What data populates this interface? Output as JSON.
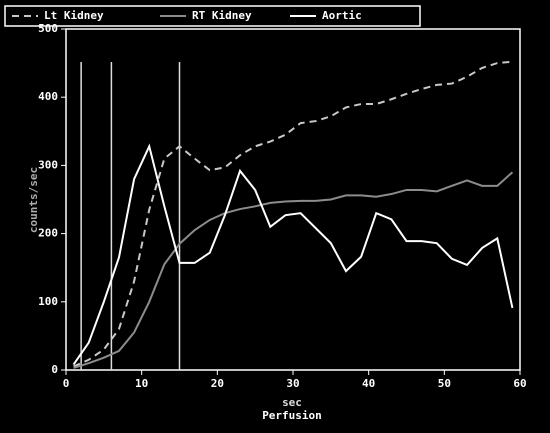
{
  "chart_data": {
    "type": "line",
    "xlabel": "sec",
    "subtitle": "Perfusion",
    "ylabel": "counts/sec",
    "x": [
      1,
      3,
      5,
      7,
      9,
      11,
      13,
      15,
      17,
      19,
      21,
      23,
      25,
      27,
      29,
      31,
      33,
      35,
      37,
      39,
      41,
      43,
      45,
      47,
      49,
      51,
      53,
      55,
      57,
      59
    ],
    "series": [
      {
        "name": "Lt Kidney",
        "color": "#c8c8c8",
        "dash": "7,5",
        "values": [
          5,
          15,
          30,
          60,
          130,
          235,
          310,
          328,
          310,
          293,
          297,
          315,
          328,
          335,
          345,
          362,
          365,
          372,
          385,
          390,
          390,
          397,
          405,
          412,
          418,
          420,
          430,
          443,
          450,
          452
        ]
      },
      {
        "name": "RT Kidney",
        "color": "#8c8c8c",
        "dash": "none",
        "values": [
          3,
          10,
          18,
          28,
          55,
          100,
          155,
          185,
          205,
          220,
          230,
          236,
          240,
          245,
          247,
          248,
          248,
          250,
          256,
          256,
          254,
          258,
          264,
          264,
          262,
          270,
          278,
          270,
          270,
          290
        ]
      },
      {
        "name": "Aortic",
        "color": "#ffffff",
        "dash": "none",
        "values": [
          8,
          40,
          100,
          165,
          280,
          328,
          240,
          157,
          157,
          172,
          227,
          292,
          264,
          210,
          227,
          230,
          208,
          186,
          145,
          166,
          230,
          221,
          189,
          189,
          186,
          163,
          154,
          179,
          193,
          91
        ]
      }
    ],
    "markers": [
      2,
      6,
      15
    ],
    "xlim": [
      0,
      60
    ],
    "xticks": [
      0,
      10,
      20,
      30,
      40,
      50,
      60
    ],
    "ylim": [
      0,
      500
    ],
    "yticks": [
      0,
      100,
      200,
      300,
      400,
      500
    ],
    "legend": "top"
  }
}
